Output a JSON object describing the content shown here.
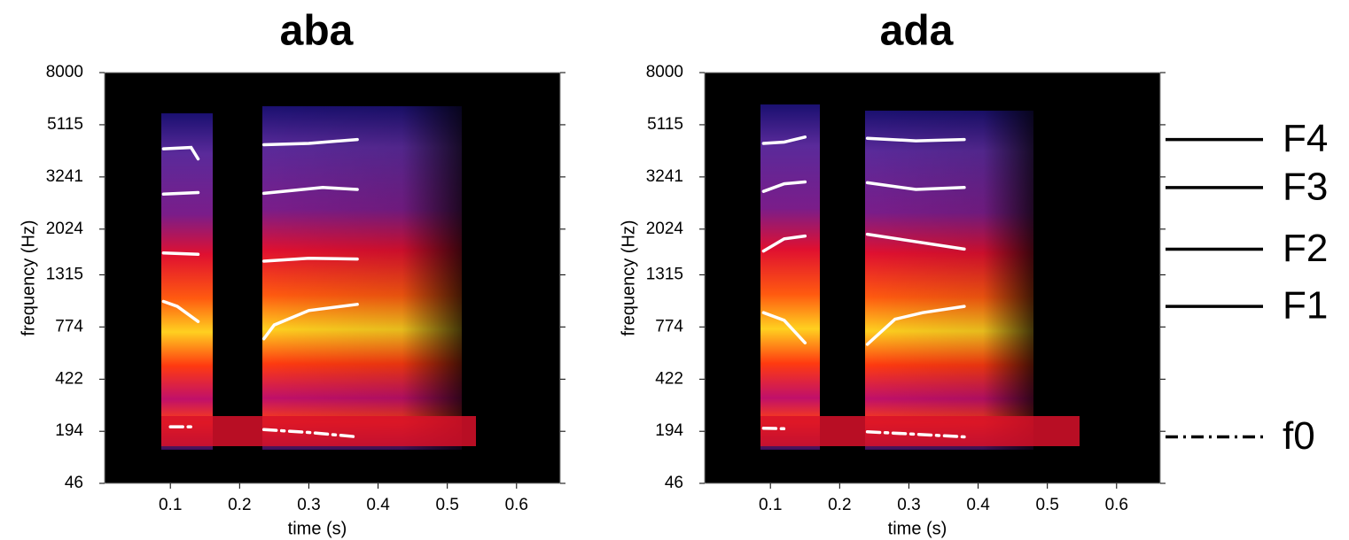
{
  "chart_data": [
    {
      "type": "line",
      "title": "aba",
      "x_label": "time (s)",
      "y_label": "frequency (Hz)",
      "xlim": [
        0.005,
        0.663
      ],
      "xticks": [
        0.1,
        0.2,
        0.3,
        0.4,
        0.5,
        0.6
      ],
      "ylim": [
        46,
        8000
      ],
      "yscale": "erb",
      "yticks": [
        46,
        194,
        422,
        774,
        1315,
        2024,
        3241,
        5115,
        8000
      ],
      "series": [
        {
          "color": "#ffffff",
          "style": "solid",
          "x": [
            0.09,
            0.11,
            0.14,
            null,
            0.235,
            0.25,
            0.3,
            0.37
          ],
          "values": [
            1010,
            960,
            820,
            null,
            680,
            790,
            920,
            980
          ]
        },
        {
          "color": "#ffffff",
          "style": "solid",
          "x": [
            0.09,
            0.14,
            null,
            0.235,
            0.3,
            0.37
          ],
          "values": [
            1620,
            1600,
            null,
            1500,
            1540,
            1530
          ]
        },
        {
          "color": "#ffffff",
          "style": "solid",
          "x": [
            0.09,
            0.14,
            null,
            0.235,
            0.32,
            0.37
          ],
          "values": [
            2780,
            2820,
            null,
            2800,
            2950,
            2900
          ]
        },
        {
          "color": "#ffffff",
          "style": "solid",
          "x": [
            0.09,
            0.13,
            0.14,
            null,
            0.235,
            0.3,
            0.37
          ],
          "values": [
            4150,
            4200,
            3800,
            null,
            4300,
            4350,
            4500
          ]
        },
        {
          "color": "#ffffff",
          "style": "dashdot",
          "x": [
            0.1,
            0.135,
            null,
            0.235,
            0.3,
            0.37
          ],
          "values": [
            210,
            210,
            null,
            200,
            190,
            175
          ]
        }
      ]
    },
    {
      "type": "line",
      "title": "ada",
      "x_label": "time (s)",
      "y_label": "frequency (Hz)",
      "xlim": [
        0.005,
        0.663
      ],
      "xticks": [
        0.1,
        0.2,
        0.3,
        0.4,
        0.5,
        0.6
      ],
      "ylim": [
        46,
        8000
      ],
      "yscale": "erb",
      "yticks": [
        46,
        194,
        422,
        774,
        1315,
        2024,
        3241,
        5115,
        8000
      ],
      "legend": "right",
      "series": [
        {
          "name": "F1",
          "color": "#ffffff",
          "style": "solid",
          "x": [
            0.09,
            0.12,
            0.15,
            null,
            0.24,
            0.28,
            0.32,
            0.38
          ],
          "values": [
            900,
            830,
            650,
            null,
            640,
            840,
            900,
            960
          ]
        },
        {
          "name": "F2",
          "color": "#ffffff",
          "style": "solid",
          "x": [
            0.09,
            0.12,
            0.15,
            null,
            0.24,
            0.3,
            0.38
          ],
          "values": [
            1650,
            1850,
            1900,
            null,
            1930,
            1820,
            1680
          ]
        },
        {
          "name": "F3",
          "color": "#ffffff",
          "style": "solid",
          "x": [
            0.09,
            0.12,
            0.15,
            null,
            0.24,
            0.31,
            0.38
          ],
          "values": [
            2850,
            3050,
            3100,
            null,
            3080,
            2900,
            2950
          ]
        },
        {
          "name": "F4",
          "color": "#ffffff",
          "style": "solid",
          "x": [
            0.09,
            0.12,
            0.15,
            null,
            0.24,
            0.31,
            0.38
          ],
          "values": [
            4350,
            4400,
            4600,
            null,
            4550,
            4450,
            4500
          ]
        },
        {
          "name": "f0",
          "color": "#ffffff",
          "style": "dashdot",
          "x": [
            0.09,
            0.12,
            null,
            0.24,
            0.3,
            0.38
          ],
          "values": [
            205,
            203,
            null,
            192,
            185,
            175
          ]
        }
      ]
    }
  ]
}
